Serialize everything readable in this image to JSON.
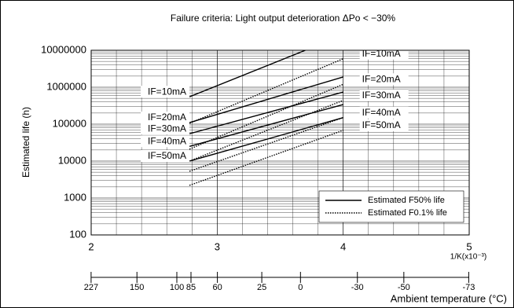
{
  "chart_data": {
    "type": "line",
    "title": "Failure criteria: Light output deterioration ΔPo < −30%",
    "y_label": "Estimated life (h)",
    "x_label": "1/K(x10⁻³)",
    "x2_label": "Ambient temperature (°C)",
    "xlim": [
      2,
      5
    ],
    "xticks": [
      2,
      3,
      4,
      5
    ],
    "x2ticks": [
      227,
      150,
      100,
      85,
      60,
      25,
      0,
      -30,
      -50,
      -73
    ],
    "ylim": [
      100,
      10000000
    ],
    "yticks": [
      100,
      1000,
      10000,
      100000,
      1000000,
      10000000
    ],
    "y_scale": "log",
    "grid": true,
    "legend": "lower right",
    "groups": [
      {
        "name": "Estimated F50% life",
        "dash": "solid",
        "label_side": "left",
        "color": "#000000",
        "series": [
          {
            "name": "IF=10mA",
            "x": [
              2.78,
              3.7
            ],
            "values": [
              550000,
              10000000
            ]
          },
          {
            "name": "IF=20mA",
            "x": [
              2.78,
              4.0
            ],
            "values": [
              110000,
              1900000
            ]
          },
          {
            "name": "IF=30mA",
            "x": [
              2.78,
              4.0
            ],
            "values": [
              55000,
              740000
            ]
          },
          {
            "name": "IF=40mA",
            "x": [
              2.78,
              4.0
            ],
            "values": [
              25000,
              340000
            ]
          },
          {
            "name": "IF=50mA",
            "x": [
              2.78,
              4.0
            ],
            "values": [
              10000,
              150000
            ]
          }
        ]
      },
      {
        "name": "Estimated F0.1% life",
        "dash": "dotted",
        "label_side": "right",
        "color": "#000000",
        "series": [
          {
            "name": "IF=10mA",
            "x": [
              2.78,
              4.0
            ],
            "values": [
              105000,
              5900000
            ]
          },
          {
            "name": "IF=20mA",
            "x": [
              2.78,
              4.0
            ],
            "values": [
              21000,
              1200000
            ]
          },
          {
            "name": "IF=30mA",
            "x": [
              2.78,
              4.0
            ],
            "values": [
              10000,
              440000
            ]
          },
          {
            "name": "IF=40mA",
            "x": [
              2.78,
              4.0
            ],
            "values": [
              5300,
              150000
            ]
          },
          {
            "name": "IF=50mA",
            "x": [
              2.78,
              4.0
            ],
            "values": [
              2200,
              68000
            ]
          }
        ]
      }
    ]
  }
}
